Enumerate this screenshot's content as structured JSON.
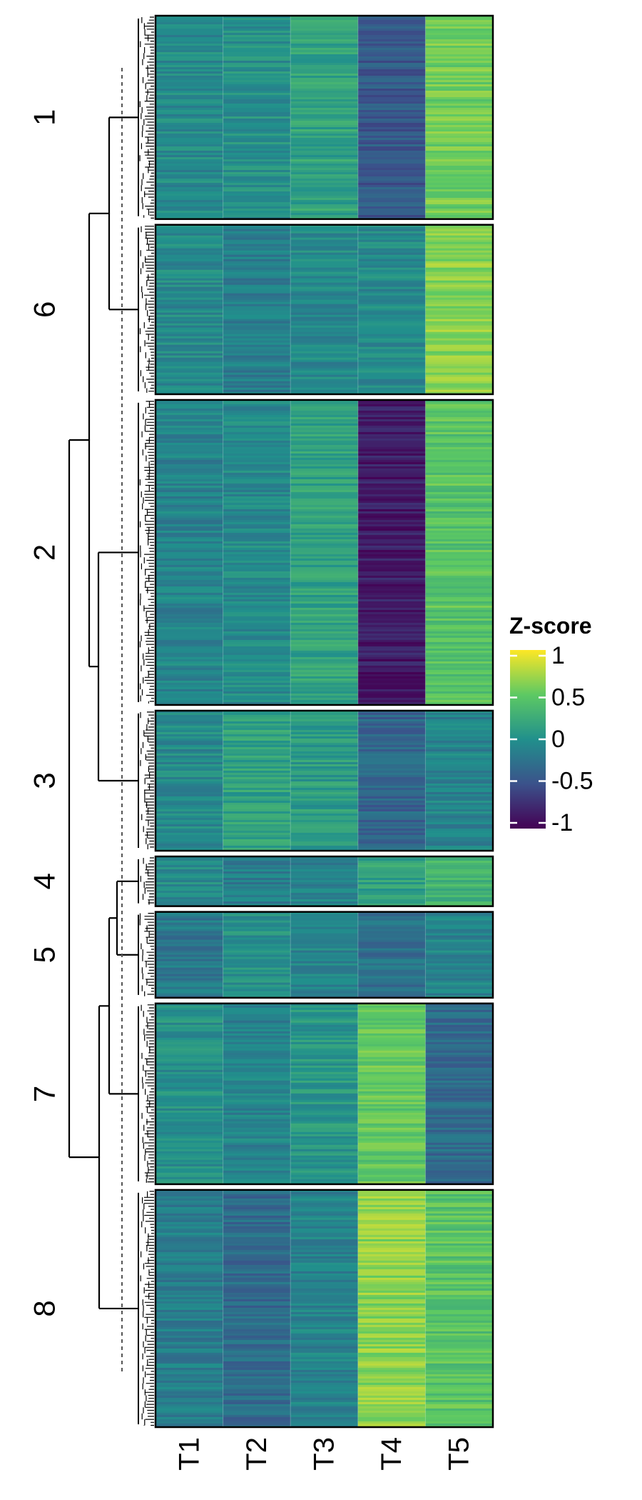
{
  "chart_data": {
    "type": "heatmap",
    "columns": [
      "T1",
      "T2",
      "T3",
      "T4",
      "T5"
    ],
    "row_order": [
      "1",
      "6",
      "2",
      "3",
      "4",
      "5",
      "7",
      "8"
    ],
    "clusters": [
      {
        "name": "1",
        "rows": 90,
        "means": [
          -0.05,
          0.0,
          0.15,
          -0.45,
          0.55
        ]
      },
      {
        "name": "6",
        "rows": 75,
        "means": [
          -0.05,
          -0.15,
          -0.05,
          -0.05,
          0.65
        ]
      },
      {
        "name": "2",
        "rows": 135,
        "means": [
          -0.1,
          -0.05,
          0.15,
          -0.85,
          0.45
        ]
      },
      {
        "name": "3",
        "rows": 62,
        "means": [
          -0.05,
          0.15,
          0.1,
          -0.35,
          -0.1
        ]
      },
      {
        "name": "4",
        "rows": 22,
        "means": [
          -0.05,
          -0.15,
          -0.1,
          0.15,
          0.3
        ]
      },
      {
        "name": "5",
        "rows": 38,
        "means": [
          -0.2,
          0.0,
          -0.1,
          -0.25,
          -0.1
        ]
      },
      {
        "name": "7",
        "rows": 80,
        "means": [
          0.0,
          -0.1,
          0.05,
          0.5,
          -0.3
        ]
      },
      {
        "name": "8",
        "rows": 105,
        "means": [
          -0.15,
          -0.3,
          -0.1,
          0.65,
          0.45
        ]
      }
    ],
    "color_scale": {
      "name": "viridis",
      "range": [
        -1,
        1
      ],
      "stops": [
        "#440154",
        "#3b528b",
        "#21908c",
        "#5dc963",
        "#fde725"
      ]
    },
    "legend": {
      "title": "Z-score",
      "ticks": [
        {
          "value": 1,
          "label": "1"
        },
        {
          "value": 0.5,
          "label": "0.5"
        },
        {
          "value": 0,
          "label": "0"
        },
        {
          "value": -0.5,
          "label": "-0.5"
        },
        {
          "value": -1,
          "label": "-1"
        }
      ],
      "placement": "right"
    }
  }
}
